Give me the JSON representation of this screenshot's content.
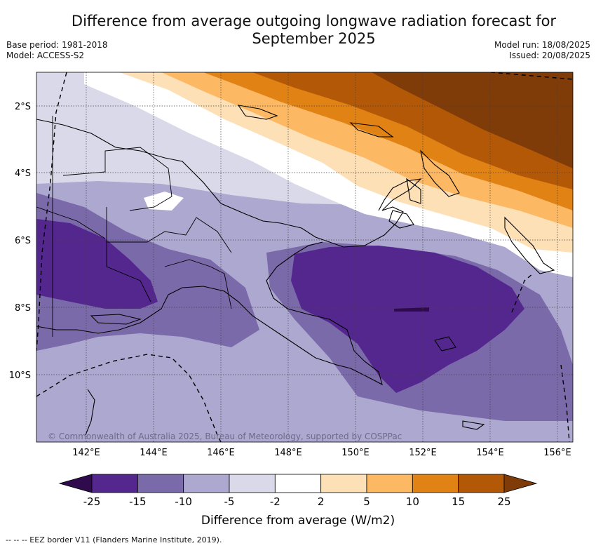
{
  "header": {
    "title_line1": "Difference from average outgoing longwave radiation forecast for",
    "title_line2": "September 2025",
    "base_period": "Base period: 1981-2018",
    "model": "Model: ACCESS-S2",
    "model_run": "Model run: 18/08/2025",
    "issued": "Issued: 20/08/2025"
  },
  "map": {
    "lat_labels": [
      "2°S",
      "4°S",
      "6°S",
      "8°S",
      "10°S"
    ],
    "lon_labels": [
      "142°E",
      "144°E",
      "146°E",
      "148°E",
      "150°E",
      "152°E",
      "154°E",
      "156°E"
    ],
    "copyright": "© Commonwealth of Australia 2025, Bureau of Meteorology, supported by COSPPac"
  },
  "colorbar": {
    "labels": [
      "-25",
      "-15",
      "-10",
      "-5",
      "-2",
      "2",
      "5",
      "10",
      "15",
      "25"
    ],
    "colors": [
      "#2f0a4d",
      "#54278f",
      "#7b6aa9",
      "#ada8d0",
      "#d9d9ea",
      "#ffffff",
      "#fee0b6",
      "#fdb863",
      "#e08214",
      "#b35806",
      "#7f3b08"
    ],
    "title": "Difference from average (W/m2)"
  },
  "footer": {
    "legend": "--  --  -- EEZ border V11 (Flanders Marine Institute, 2019)."
  }
}
